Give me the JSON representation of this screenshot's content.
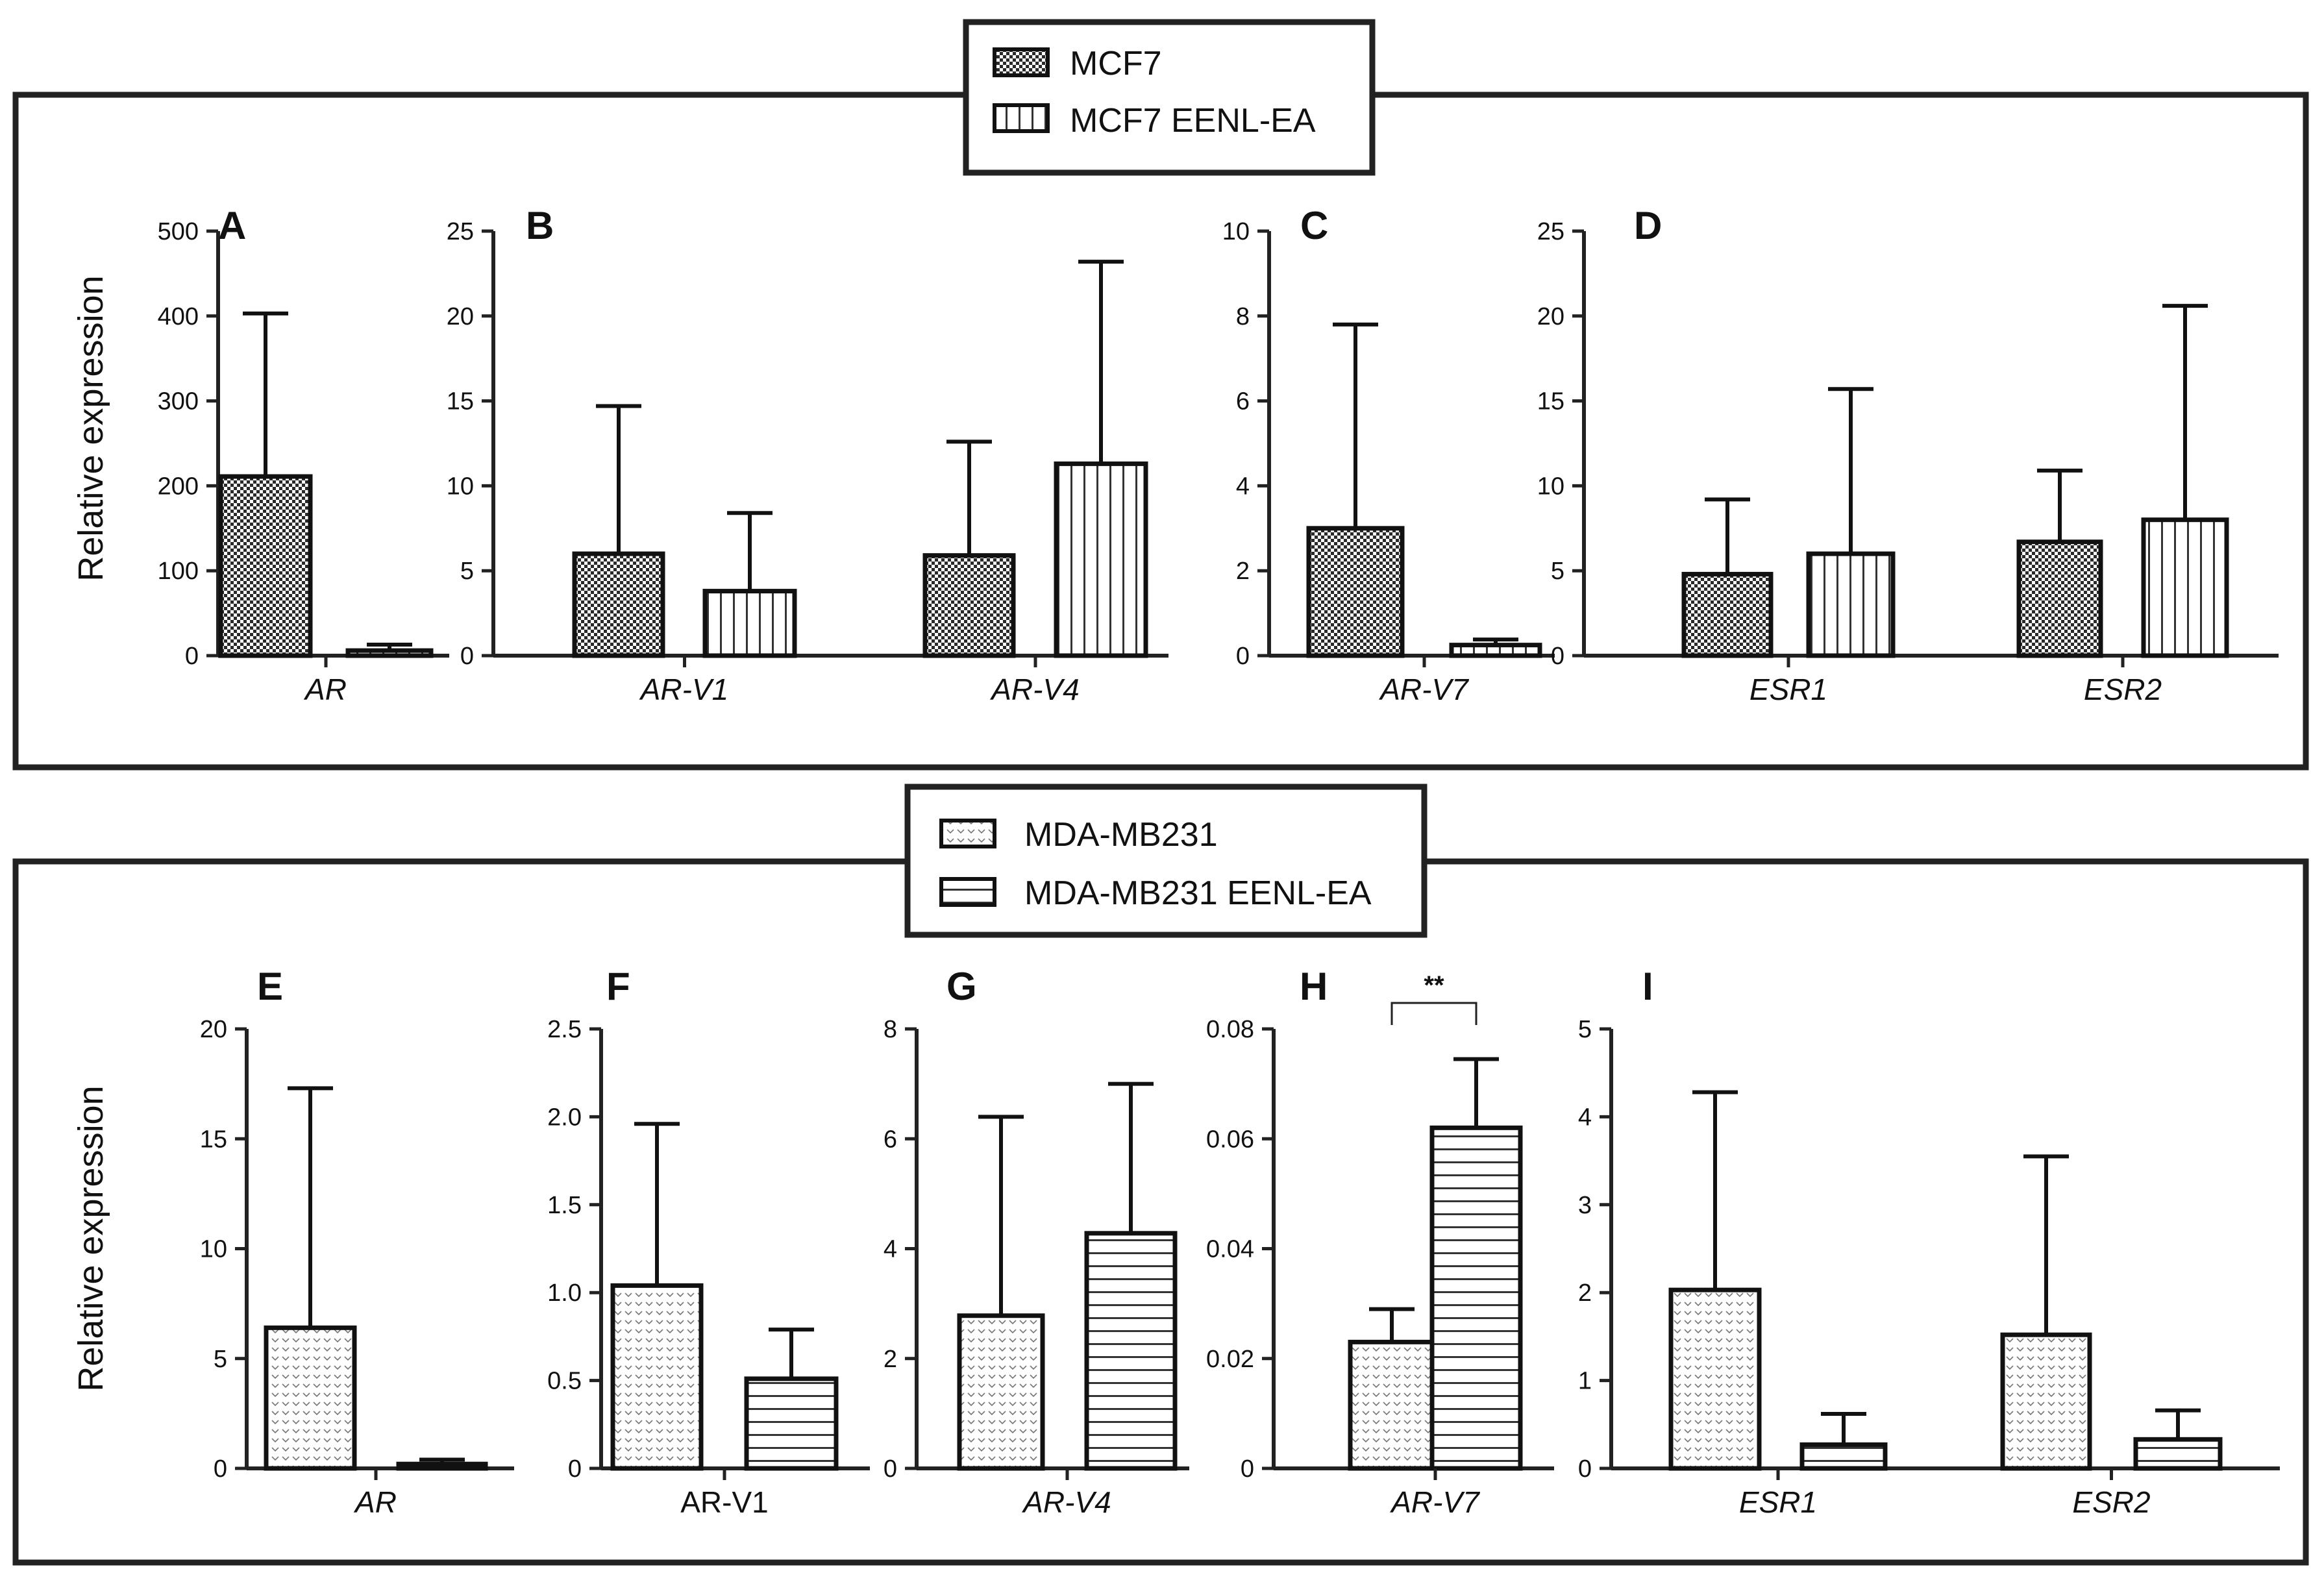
{
  "figure": {
    "ylabel": "Relative expression"
  },
  "legends": [
    {
      "entries": [
        {
          "label": "MCF7",
          "pattern": "checker"
        },
        {
          "label": "MCF7 EENL-EA",
          "pattern": "vstripe"
        }
      ]
    },
    {
      "entries": [
        {
          "label": "MDA-MB231",
          "pattern": "chevron"
        },
        {
          "label": "MDA-MB231 EENL-EA",
          "pattern": "hstripe"
        }
      ]
    }
  ],
  "chart_data": [
    {
      "type": "bar",
      "panel": "A",
      "categories": [
        "AR"
      ],
      "italic": true,
      "ylim": [
        0,
        500
      ],
      "yticks": [
        "0",
        "100",
        "200",
        "300",
        "400",
        "500"
      ],
      "series": [
        {
          "name": "MCF7",
          "values": [
            211
          ],
          "err": [
            403
          ]
        },
        {
          "name": "MCF7 EENL-EA",
          "values": [
            6
          ],
          "err": [
            13
          ]
        }
      ]
    },
    {
      "type": "bar",
      "panel": "B",
      "categories": [
        "AR-V1",
        "AR-V4"
      ],
      "italic": true,
      "ylim": [
        0,
        25
      ],
      "yticks": [
        "0",
        "5",
        "10",
        "15",
        "20",
        "25"
      ],
      "series": [
        {
          "name": "MCF7",
          "values": [
            6.0,
            5.9
          ],
          "err": [
            14.7,
            12.6
          ]
        },
        {
          "name": "MCF7 EENL-EA",
          "values": [
            3.8,
            11.3
          ],
          "err": [
            8.4,
            23.2
          ]
        }
      ]
    },
    {
      "type": "bar",
      "panel": "C",
      "categories": [
        "AR-V7"
      ],
      "italic": true,
      "ylim": [
        0,
        10
      ],
      "yticks": [
        "0",
        "2",
        "4",
        "6",
        "8",
        "10"
      ],
      "series": [
        {
          "name": "MCF7",
          "values": [
            3.0
          ],
          "err": [
            7.8
          ]
        },
        {
          "name": "MCF7 EENL-EA",
          "values": [
            0.25
          ],
          "err": [
            0.38
          ]
        }
      ]
    },
    {
      "type": "bar",
      "panel": "D",
      "categories": [
        "ESR1",
        "ESR2"
      ],
      "italic": true,
      "ylim": [
        0,
        25
      ],
      "yticks": [
        "0",
        "5",
        "10",
        "15",
        "20",
        "25"
      ],
      "series": [
        {
          "name": "MCF7",
          "values": [
            4.8,
            6.7
          ],
          "err": [
            9.2,
            10.9
          ]
        },
        {
          "name": "MCF7 EENL-EA",
          "values": [
            6.0,
            8.0
          ],
          "err": [
            15.7,
            20.6
          ]
        }
      ]
    },
    {
      "type": "bar",
      "panel": "E",
      "categories": [
        "AR"
      ],
      "italic": true,
      "ylim": [
        0,
        20
      ],
      "yticks": [
        "0",
        "5",
        "10",
        "15",
        "20"
      ],
      "series": [
        {
          "name": "MDA-MB231",
          "values": [
            6.4
          ],
          "err": [
            17.3
          ]
        },
        {
          "name": "MDA-MB231 EENL-EA",
          "values": [
            0.2
          ],
          "err": [
            0.4
          ]
        }
      ]
    },
    {
      "type": "bar",
      "panel": "F",
      "categories": [
        "AR-V1"
      ],
      "italic": false,
      "ylim": [
        0,
        2.5
      ],
      "yticks": [
        "0",
        "0.5",
        "1.0",
        "1.5",
        "2.0",
        "2.5"
      ],
      "series": [
        {
          "name": "MDA-MB231",
          "values": [
            1.04
          ],
          "err": [
            1.96
          ]
        },
        {
          "name": "MDA-MB231 EENL-EA",
          "values": [
            0.51
          ],
          "err": [
            0.79
          ]
        }
      ]
    },
    {
      "type": "bar",
      "panel": "G",
      "categories": [
        "AR-V4"
      ],
      "italic": true,
      "ylim": [
        0,
        8
      ],
      "yticks": [
        "0",
        "2",
        "4",
        "6",
        "8"
      ],
      "series": [
        {
          "name": "MDA-MB231",
          "values": [
            2.78
          ],
          "err": [
            6.4
          ]
        },
        {
          "name": "MDA-MB231 EENL-EA",
          "values": [
            4.28
          ],
          "err": [
            7.0
          ]
        }
      ]
    },
    {
      "type": "bar",
      "panel": "H",
      "categories": [
        "AR-V7"
      ],
      "italic": true,
      "ylim": [
        0,
        0.08
      ],
      "yticks": [
        "0",
        "0.02",
        "0.04",
        "0.06",
        "0.08"
      ],
      "series": [
        {
          "name": "MDA-MB231",
          "values": [
            0.023
          ],
          "err": [
            0.029
          ]
        },
        {
          "name": "MDA-MB231 EENL-EA",
          "values": [
            0.062
          ],
          "err": [
            0.0745
          ]
        }
      ],
      "significance": "**"
    },
    {
      "type": "bar",
      "panel": "I",
      "categories": [
        "ESR1",
        "ESR2"
      ],
      "italic": true,
      "ylim": [
        0,
        5
      ],
      "yticks": [
        "0",
        "1",
        "2",
        "3",
        "4",
        "5"
      ],
      "series": [
        {
          "name": "MDA-MB231",
          "values": [
            2.03,
            1.52
          ],
          "err": [
            4.28,
            3.55
          ]
        },
        {
          "name": "MDA-MB231 EENL-EA",
          "values": [
            0.27,
            0.33
          ],
          "err": [
            0.62,
            0.66
          ]
        }
      ]
    }
  ]
}
